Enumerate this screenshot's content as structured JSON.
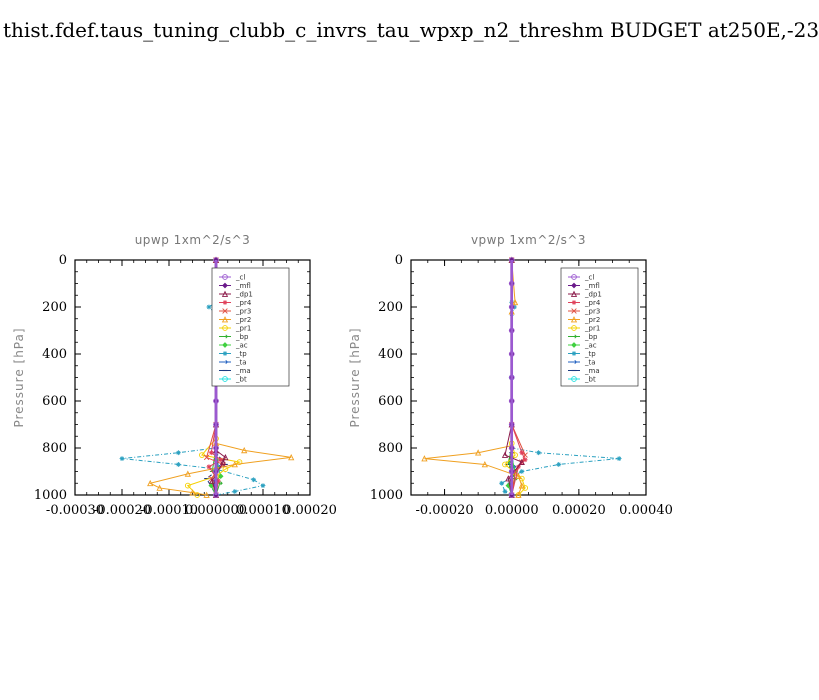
{
  "figure_title": "thist.fdef.taus_tuning_clubb_c_invrs_tau_wpxp_n2_threshm  BUDGET at250E,-23",
  "colors": {
    "_cl": "#9b59d0",
    "_mfl": "#6a1a8a",
    "_dp1": "#8b1a4a",
    "_pr4": "#e0405a",
    "_pr3": "#e05040",
    "_pr2": "#f0a020",
    "_pr1": "#f5d000",
    "_bp": "#30b030",
    "_ac": "#40d040",
    "_tp": "#2aa0c0",
    "_ta": "#2060c0",
    "_ma": "#1a3a80",
    "_bt": "#20e0e0"
  },
  "chart_data": [
    {
      "type": "line",
      "title": "upwp   1xm^2/s^3",
      "ylabel": "Pressure [hPa]",
      "xlim": [
        -0.0003,
        0.0002
      ],
      "ylim": [
        1000,
        0
      ],
      "xticks": [
        "-0.00030",
        "-0.00020",
        "-0.00010",
        "0.000000",
        "0.00010",
        "0.00020"
      ],
      "xtick_values": [
        -0.0003,
        -0.0002,
        -0.0001,
        0.0,
        0.0001,
        0.0002
      ],
      "yticks": [
        "0",
        "200",
        "400",
        "600",
        "800",
        "1000"
      ],
      "ytick_values": [
        0,
        200,
        400,
        600,
        800,
        1000
      ],
      "legend_position": "top-right",
      "series": [
        {
          "name": "_cl",
          "x": [
            0,
            0,
            0,
            0,
            0,
            0,
            0,
            0,
            0,
            0,
            0
          ],
          "y": [
            0,
            100,
            200,
            300,
            400,
            500,
            600,
            700,
            800,
            900,
            1000
          ]
        },
        {
          "name": "_mfl",
          "x": [
            0,
            0,
            0,
            0,
            0,
            0,
            0,
            0,
            0,
            0,
            0
          ],
          "y": [
            0,
            100,
            200,
            300,
            400,
            500,
            600,
            700,
            800,
            900,
            1000
          ]
        },
        {
          "name": "_dp1",
          "x": [
            0,
            0,
            0,
            0,
            2e-05,
            1.5e-05,
            -8e-06,
            0
          ],
          "y": [
            0,
            200,
            700,
            810,
            840,
            860,
            940,
            1000
          ]
        },
        {
          "name": "_pr4",
          "x": [
            0,
            0,
            -1e-05,
            1e-05,
            -1.5e-05,
            5e-06,
            0
          ],
          "y": [
            0,
            700,
            820,
            850,
            880,
            940,
            1000
          ]
        },
        {
          "name": "_pr3",
          "x": [
            0,
            0,
            -2e-05,
            1.5e-05,
            -1e-05,
            0
          ],
          "y": [
            0,
            700,
            840,
            870,
            930,
            1000
          ]
        },
        {
          "name": "_pr2",
          "x": [
            0,
            1e-05,
            0,
            0,
            6e-05,
            0.00016,
            4e-05,
            -6e-05,
            -0.00014,
            -0.00012,
            -5e-05,
            -2e-05
          ],
          "y": [
            0,
            185,
            210,
            780,
            810,
            840,
            870,
            910,
            950,
            970,
            990,
            1000
          ]
        },
        {
          "name": "_pr1",
          "x": [
            0,
            0,
            -3e-05,
            5e-05,
            2e-05,
            0,
            -6e-05,
            -4e-05
          ],
          "y": [
            0,
            760,
            830,
            860,
            890,
            920,
            960,
            1000
          ]
        },
        {
          "name": "_bp",
          "x": [
            0,
            0,
            -8e-06,
            8e-06,
            0
          ],
          "y": [
            0,
            800,
            900,
            950,
            1000
          ]
        },
        {
          "name": "_ac",
          "x": [
            0,
            0,
            1e-05,
            -1e-05,
            0
          ],
          "y": [
            0,
            850,
            920,
            960,
            1000
          ]
        },
        {
          "name": "_tp",
          "x": [
            0,
            0,
            -1.5e-05,
            0,
            0,
            -8e-05,
            -0.0002,
            -8e-05,
            0,
            8e-05,
            0.0001,
            4e-05,
            0
          ],
          "y": [
            0,
            180,
            200,
            230,
            800,
            820,
            845,
            870,
            890,
            935,
            960,
            985,
            1000
          ]
        },
        {
          "name": "_ta",
          "x": [
            0,
            0,
            5e-06,
            -5e-06,
            0
          ],
          "y": [
            0,
            800,
            880,
            950,
            1000
          ]
        },
        {
          "name": "_ma",
          "x": [
            0,
            0,
            2e-05,
            -2e-05,
            0
          ],
          "y": [
            0,
            820,
            870,
            930,
            1000
          ]
        },
        {
          "name": "_bt",
          "x": [
            0,
            0,
            0,
            0
          ],
          "y": [
            0,
            500,
            900,
            1000
          ]
        }
      ]
    },
    {
      "type": "line",
      "title": "vpwp   1xm^2/s^3",
      "ylabel": "Pressure [hPa]",
      "xlim": [
        -0.0003,
        0.0004
      ],
      "ylim": [
        1000,
        0
      ],
      "xticks": [
        "-0.00020",
        "0.00000",
        "0.00020",
        "0.00040"
      ],
      "xtick_values": [
        -0.0002,
        0.0,
        0.0002,
        0.0004
      ],
      "yticks": [
        "0",
        "200",
        "400",
        "600",
        "800",
        "1000"
      ],
      "ytick_values": [
        0,
        200,
        400,
        600,
        800,
        1000
      ],
      "legend_position": "top-right",
      "series": [
        {
          "name": "_cl",
          "x": [
            0,
            0,
            0,
            0,
            0,
            0,
            0,
            0,
            0,
            0,
            0
          ],
          "y": [
            0,
            100,
            200,
            300,
            400,
            500,
            600,
            700,
            800,
            900,
            1000
          ]
        },
        {
          "name": "_mfl",
          "x": [
            0,
            0,
            0,
            0,
            0,
            0,
            0,
            0,
            0,
            0,
            0
          ],
          "y": [
            0,
            100,
            200,
            300,
            400,
            500,
            600,
            700,
            800,
            900,
            1000
          ]
        },
        {
          "name": "_dp1",
          "x": [
            0,
            0,
            -2e-05,
            3e-05,
            -1e-05,
            0
          ],
          "y": [
            0,
            700,
            830,
            860,
            930,
            1000
          ]
        },
        {
          "name": "_pr4",
          "x": [
            0,
            0,
            3e-05,
            4e-05,
            2e-05,
            0
          ],
          "y": [
            0,
            700,
            820,
            850,
            880,
            1000
          ]
        },
        {
          "name": "_pr3",
          "x": [
            0,
            0,
            4e-05,
            3e-05,
            1e-05,
            0
          ],
          "y": [
            0,
            700,
            830,
            860,
            900,
            1000
          ]
        },
        {
          "name": "_pr2",
          "x": [
            0,
            1e-05,
            0,
            0,
            -0.0001,
            -0.00026,
            -8e-05,
            2e-05,
            3e-05,
            2e-05
          ],
          "y": [
            0,
            180,
            220,
            790,
            820,
            845,
            870,
            920,
            960,
            1000
          ]
        },
        {
          "name": "_pr1",
          "x": [
            0,
            0,
            1e-05,
            -2e-05,
            3e-05,
            4e-05,
            2e-05
          ],
          "y": [
            0,
            780,
            830,
            870,
            930,
            970,
            1000
          ]
        },
        {
          "name": "_bp",
          "x": [
            0,
            0,
            -1e-05,
            1e-05,
            0
          ],
          "y": [
            0,
            800,
            860,
            930,
            1000
          ]
        },
        {
          "name": "_ac",
          "x": [
            0,
            0,
            1e-05,
            -1e-05,
            0
          ],
          "y": [
            0,
            840,
            900,
            960,
            1000
          ]
        },
        {
          "name": "_tp",
          "x": [
            0,
            0,
            8e-06,
            0,
            0,
            8e-05,
            0.00032,
            0.00014,
            3e-05,
            -3e-05,
            -2e-05,
            0
          ],
          "y": [
            0,
            180,
            200,
            230,
            800,
            820,
            845,
            870,
            900,
            950,
            985,
            1000
          ]
        },
        {
          "name": "_ta",
          "x": [
            0,
            0,
            5e-06,
            -5e-06,
            0
          ],
          "y": [
            0,
            800,
            880,
            950,
            1000
          ]
        },
        {
          "name": "_ma",
          "x": [
            0,
            0,
            -1e-05,
            1e-05,
            0
          ],
          "y": [
            0,
            820,
            870,
            930,
            1000
          ]
        },
        {
          "name": "_bt",
          "x": [
            0,
            0,
            0,
            0
          ],
          "y": [
            0,
            500,
            900,
            1000
          ]
        }
      ]
    }
  ]
}
